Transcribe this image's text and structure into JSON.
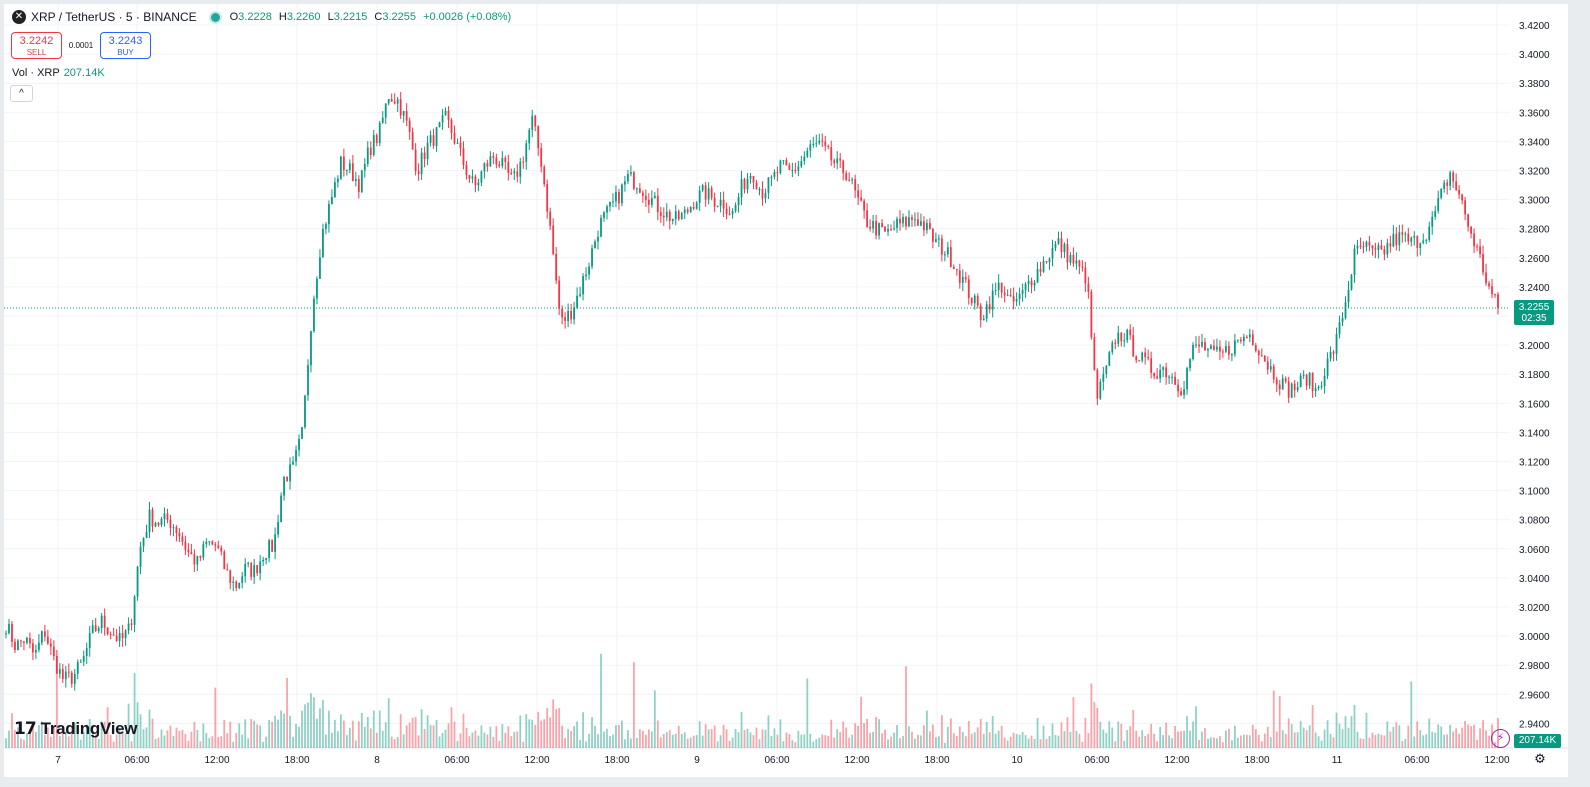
{
  "header": {
    "symbol_icon": "xrp-logo-icon",
    "title": "XRP / TetherUS · 5 · BINANCE",
    "ohlc": {
      "o_label": "O",
      "o": "3.2228",
      "h_label": "H",
      "h": "3.2260",
      "l_label": "L",
      "l": "3.2215",
      "c_label": "C",
      "c": "3.2255",
      "change": "+0.0026 (+0.08%)"
    }
  },
  "trade": {
    "sell_price": "3.2242",
    "sell_label": "SELL",
    "spread": "0.0001",
    "buy_price": "3.2243",
    "buy_label": "BUY"
  },
  "volume_legend": {
    "label": "Vol · XRP",
    "value": "207.14K"
  },
  "collapse_icon": "chevron-up-icon",
  "branding": {
    "logo_mark": "17",
    "logo_text": "TradingView"
  },
  "price_scale": {
    "last_price": "3.2255",
    "countdown": "02:35",
    "last_volume": "207.14K"
  },
  "colors": {
    "up": "#089981",
    "down": "#f23645",
    "grid": "#f0f3fa",
    "accent": "#2962ff"
  },
  "chart_data": {
    "type": "candlestick",
    "interval": "5",
    "y_ticks": [
      "3.4200",
      "3.4000",
      "3.3800",
      "3.3600",
      "3.3400",
      "3.3200",
      "3.3000",
      "3.2800",
      "3.2600",
      "3.2400",
      "3.2200",
      "3.2000",
      "3.1800",
      "3.1600",
      "3.1400",
      "3.1200",
      "3.1000",
      "3.0800",
      "3.0600",
      "3.0400",
      "3.0200",
      "3.0000",
      "2.9800",
      "2.9600",
      "2.9400"
    ],
    "ylim": [
      2.93,
      3.425
    ],
    "x_ticks": [
      "7",
      "06:00",
      "12:00",
      "18:00",
      "8",
      "06:00",
      "12:00",
      "18:00",
      "9",
      "06:00",
      "12:00",
      "18:00",
      "10",
      "06:00",
      "12:00",
      "18:00",
      "11",
      "06:00",
      "12:00"
    ],
    "last_price_value": 3.2255,
    "price_path": [
      [
        0,
        3.008
      ],
      [
        1,
        2.993
      ],
      [
        2,
        2.998
      ],
      [
        3,
        2.986
      ],
      [
        4,
        3.004
      ],
      [
        5,
        2.984
      ],
      [
        6,
        2.97
      ],
      [
        7,
        2.972
      ],
      [
        8,
        2.982
      ],
      [
        9,
        3.002
      ],
      [
        10,
        3.01
      ],
      [
        11,
        3.003
      ],
      [
        12,
        2.996
      ],
      [
        13,
        3.006
      ],
      [
        14,
        3.06
      ],
      [
        15,
        3.082
      ],
      [
        16,
        3.078
      ],
      [
        17,
        3.08
      ],
      [
        18,
        3.072
      ],
      [
        19,
        3.058
      ],
      [
        20,
        3.05
      ],
      [
        21,
        3.064
      ],
      [
        22,
        3.062
      ],
      [
        23,
        3.044
      ],
      [
        24,
        3.034
      ],
      [
        25,
        3.046
      ],
      [
        26,
        3.045
      ],
      [
        27,
        3.058
      ],
      [
        28,
        3.062
      ],
      [
        29,
        3.108
      ],
      [
        30,
        3.115
      ],
      [
        31,
        3.14
      ],
      [
        32,
        3.225
      ],
      [
        33,
        3.275
      ],
      [
        34,
        3.3
      ],
      [
        35,
        3.325
      ],
      [
        36,
        3.32
      ],
      [
        37,
        3.31
      ],
      [
        38,
        3.335
      ],
      [
        39,
        3.345
      ],
      [
        40,
        3.372
      ],
      [
        41,
        3.368
      ],
      [
        42,
        3.35
      ],
      [
        43,
        3.32
      ],
      [
        44,
        3.336
      ],
      [
        45,
        3.345
      ],
      [
        46,
        3.356
      ],
      [
        47,
        3.34
      ],
      [
        48,
        3.322
      ],
      [
        49,
        3.308
      ],
      [
        50,
        3.322
      ],
      [
        51,
        3.33
      ],
      [
        52,
        3.322
      ],
      [
        53,
        3.312
      ],
      [
        54,
        3.328
      ],
      [
        55,
        3.355
      ],
      [
        56,
        3.325
      ],
      [
        57,
        3.275
      ],
      [
        58,
        3.215
      ],
      [
        59,
        3.222
      ],
      [
        60,
        3.238
      ],
      [
        61,
        3.258
      ],
      [
        62,
        3.282
      ],
      [
        63,
        3.292
      ],
      [
        64,
        3.302
      ],
      [
        65,
        3.315
      ],
      [
        66,
        3.312
      ],
      [
        67,
        3.304
      ],
      [
        68,
        3.296
      ],
      [
        69,
        3.29
      ],
      [
        70,
        3.286
      ],
      [
        71,
        3.29
      ],
      [
        72,
        3.3
      ],
      [
        73,
        3.305
      ],
      [
        74,
        3.3
      ],
      [
        75,
        3.298
      ],
      [
        76,
        3.29
      ],
      [
        77,
        3.31
      ],
      [
        78,
        3.32
      ],
      [
        79,
        3.305
      ],
      [
        80,
        3.312
      ],
      [
        81,
        3.323
      ],
      [
        82,
        3.318
      ],
      [
        83,
        3.325
      ],
      [
        84,
        3.335
      ],
      [
        85,
        3.338
      ],
      [
        86,
        3.33
      ],
      [
        87,
        3.322
      ],
      [
        88,
        3.318
      ],
      [
        89,
        3.3
      ],
      [
        90,
        3.285
      ],
      [
        91,
        3.28
      ],
      [
        92,
        3.276
      ],
      [
        93,
        3.282
      ],
      [
        94,
        3.284
      ],
      [
        95,
        3.288
      ],
      [
        96,
        3.282
      ],
      [
        97,
        3.272
      ],
      [
        98,
        3.266
      ],
      [
        99,
        3.258
      ],
      [
        100,
        3.245
      ],
      [
        101,
        3.232
      ],
      [
        102,
        3.22
      ],
      [
        103,
        3.232
      ],
      [
        104,
        3.242
      ],
      [
        105,
        3.228
      ],
      [
        106,
        3.232
      ],
      [
        107,
        3.244
      ],
      [
        108,
        3.252
      ],
      [
        109,
        3.262
      ],
      [
        110,
        3.27
      ],
      [
        111,
        3.262
      ],
      [
        112,
        3.254
      ],
      [
        113,
        3.246
      ],
      [
        114,
        3.162
      ],
      [
        115,
        3.182
      ],
      [
        116,
        3.205
      ],
      [
        117,
        3.208
      ],
      [
        118,
        3.196
      ],
      [
        119,
        3.188
      ],
      [
        120,
        3.182
      ],
      [
        121,
        3.184
      ],
      [
        122,
        3.178
      ],
      [
        123,
        3.17
      ],
      [
        124,
        3.196
      ],
      [
        125,
        3.2
      ],
      [
        126,
        3.194
      ],
      [
        127,
        3.193
      ],
      [
        128,
        3.198
      ],
      [
        129,
        3.203
      ],
      [
        130,
        3.208
      ],
      [
        131,
        3.198
      ],
      [
        132,
        3.186
      ],
      [
        133,
        3.177
      ],
      [
        134,
        3.169
      ],
      [
        135,
        3.172
      ],
      [
        136,
        3.178
      ],
      [
        137,
        3.168
      ],
      [
        138,
        3.185
      ],
      [
        139,
        3.2
      ],
      [
        140,
        3.228
      ],
      [
        141,
        3.262
      ],
      [
        142,
        3.268
      ],
      [
        143,
        3.262
      ],
      [
        144,
        3.264
      ],
      [
        145,
        3.272
      ],
      [
        146,
        3.274
      ],
      [
        147,
        3.27
      ],
      [
        148,
        3.274
      ],
      [
        149,
        3.282
      ],
      [
        150,
        3.302
      ],
      [
        151,
        3.318
      ],
      [
        152,
        3.302
      ],
      [
        153,
        3.28
      ],
      [
        154,
        3.262
      ],
      [
        155,
        3.24
      ],
      [
        156,
        3.225
      ]
    ]
  }
}
